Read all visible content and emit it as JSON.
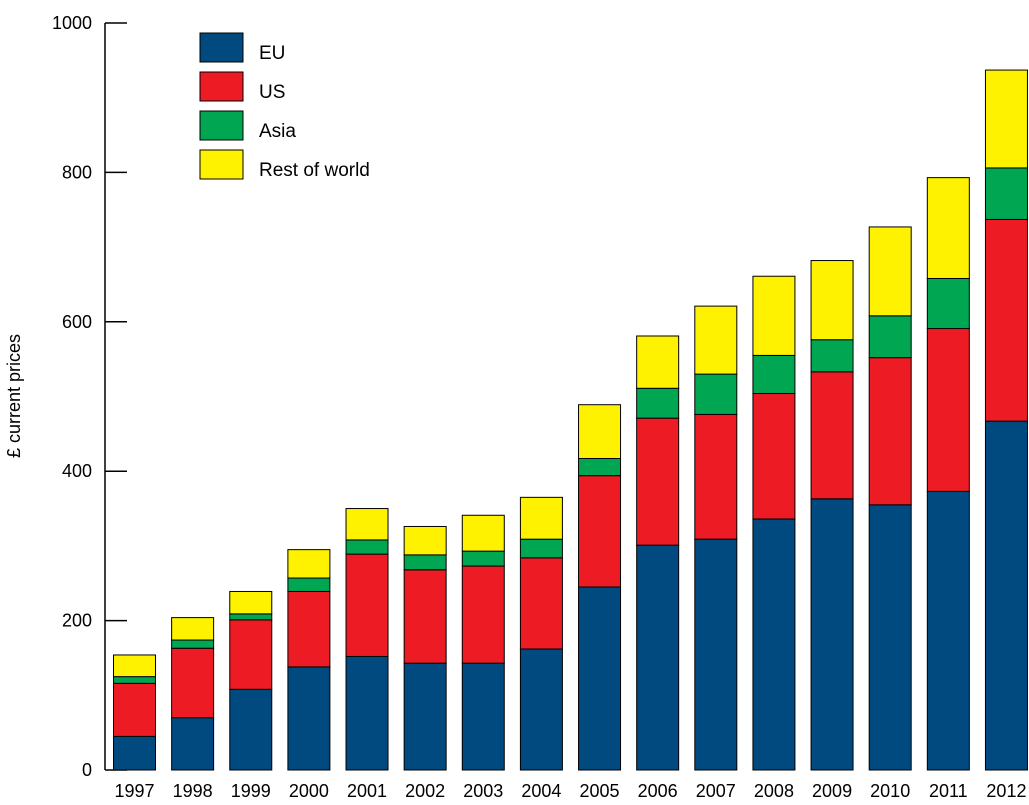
{
  "chart_data": {
    "type": "bar",
    "stacked": true,
    "title": "",
    "xlabel": "",
    "ylabel": "£ current prices",
    "ylim": [
      0,
      1000
    ],
    "yticks": [
      0,
      200,
      400,
      600,
      800,
      1000
    ],
    "grid": false,
    "legend_position": "top-left",
    "categories": [
      "1997",
      "1998",
      "1999",
      "2000",
      "2001",
      "2002",
      "2003",
      "2004",
      "2005",
      "2006",
      "2007",
      "2008",
      "2009",
      "2010",
      "2011",
      "2012"
    ],
    "series": [
      {
        "name": "EU",
        "color": "#004a80",
        "values": [
          45,
          70,
          108,
          138,
          152,
          143,
          143,
          162,
          245,
          301,
          309,
          336,
          363,
          355,
          373,
          467
        ]
      },
      {
        "name": "US",
        "color": "#ed1c24",
        "values": [
          71,
          93,
          93,
          101,
          137,
          125,
          130,
          122,
          149,
          170,
          167,
          168,
          170,
          197,
          218,
          270
        ]
      },
      {
        "name": "Asia",
        "color": "#00a651",
        "values": [
          9,
          11,
          8,
          18,
          19,
          20,
          20,
          25,
          23,
          40,
          54,
          51,
          43,
          56,
          67,
          69
        ]
      },
      {
        "name": "Rest of world",
        "color": "#fff200",
        "values": [
          29,
          30,
          30,
          38,
          42,
          38,
          48,
          56,
          72,
          70,
          91,
          106,
          106,
          119,
          135,
          131
        ]
      }
    ]
  }
}
